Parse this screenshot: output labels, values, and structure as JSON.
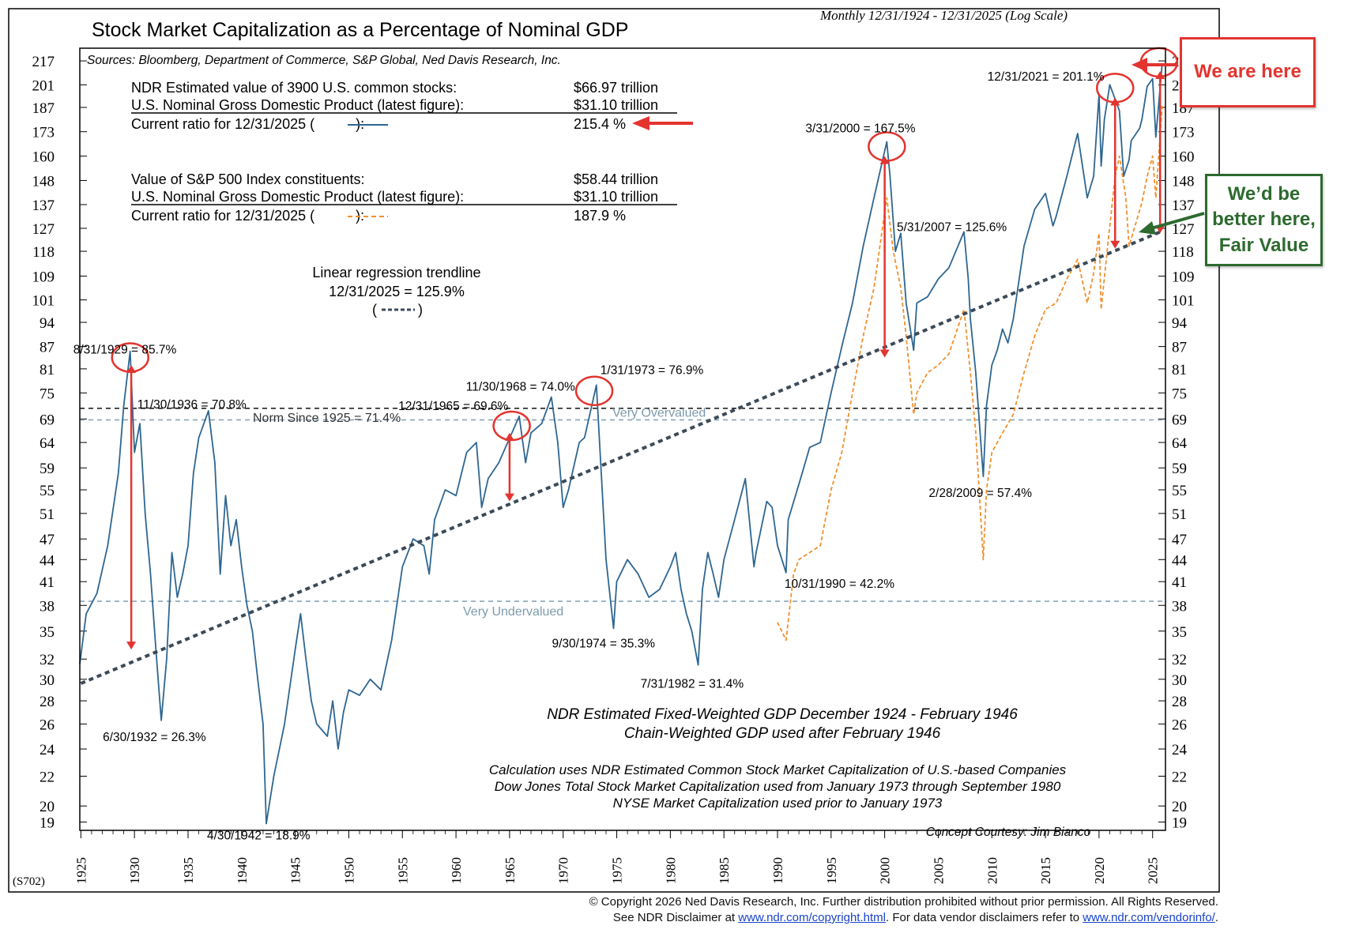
{
  "chart_data": {
    "type": "line",
    "title": "Stock Market Capitalization as a Percentage of Nominal GDP",
    "subtitle": "Monthly 12/31/1924 - 12/31/2025 (Log Scale)",
    "sources": "Sources: Bloomberg, Department of Commerce, S&P Global, Ned Davis Research, Inc.",
    "chart_code": "(S702)",
    "log_scale": true,
    "xlim": [
      1924.9,
      2026.2
    ],
    "ylim": [
      18.5,
      226
    ],
    "y_ticks": [
      19,
      20,
      22,
      24,
      26,
      28,
      30,
      32,
      35,
      38,
      41,
      44,
      47,
      51,
      55,
      59,
      64,
      69,
      75,
      81,
      87,
      94,
      101,
      109,
      118,
      127,
      137,
      148,
      160,
      173,
      187,
      201,
      217
    ],
    "x_ticks": [
      1925,
      1930,
      1935,
      1940,
      1945,
      1950,
      1955,
      1960,
      1965,
      1970,
      1975,
      1980,
      1985,
      1990,
      1995,
      2000,
      2005,
      2010,
      2015,
      2020,
      2025
    ],
    "info_block_1": [
      {
        "label": "NDR Estimated value of 3900 U.S. common stocks:",
        "value": "$66.97 trillion"
      },
      {
        "label": "U.S. Nominal Gross Domestic Product (latest figure):",
        "value": "$31.10 trillion"
      },
      {
        "label_a": "Current ratio for 12/31/2025 (",
        "label_b": "):",
        "value": "215.4 %"
      }
    ],
    "info_block_2": [
      {
        "label": "Value of S&P 500 Index constituents:",
        "value": "$58.44 trillion"
      },
      {
        "label": "U.S. Nominal Gross Domestic Product (latest figure):",
        "value": "$31.10 trillion"
      },
      {
        "label_a": "Current ratio for 12/31/2025 (",
        "label_b": "):",
        "value": "187.9 %"
      }
    ],
    "trend_label": [
      "Linear regression trendline",
      "12/31/2025 = 125.9%",
      "(",
      ")"
    ],
    "reference_lines": [
      {
        "name": "Norm Since 1925 = 71.4%",
        "value": 71.4,
        "color": "#222222",
        "dash": "6,5"
      },
      {
        "name": "Very Overvalued",
        "value": 68.8,
        "color": "#8aa6b6",
        "dash": "6,5"
      },
      {
        "name": "Very Undervalued",
        "value": 38.5,
        "color": "#8aa6b6",
        "dash": "6,5"
      }
    ],
    "trendline": {
      "x": [
        1925.0,
        2025.9
      ],
      "y": [
        29.6,
        125.9
      ],
      "color": "#3b4a58"
    },
    "series": [
      {
        "line_color": "#2e6691",
        "x": [
          1924.9,
          1925.5,
          1926.5,
          1927.5,
          1928.5,
          1929.0,
          1929.6,
          1930.0,
          1930.5,
          1931.0,
          1931.5,
          1932.0,
          1932.5,
          1933.0,
          1933.5,
          1934.0,
          1934.5,
          1935.0,
          1935.5,
          1936.0,
          1936.9,
          1937.5,
          1938.0,
          1938.5,
          1939.0,
          1939.5,
          1940.0,
          1940.5,
          1941.0,
          1941.5,
          1942.0,
          1942.3,
          1943.0,
          1944.0,
          1945.0,
          1945.5,
          1946.0,
          1946.5,
          1947.0,
          1948.0,
          1948.5,
          1949.0,
          1949.5,
          1950.0,
          1951.0,
          1952.0,
          1953.0,
          1954.0,
          1955.0,
          1956.0,
          1957.0,
          1957.5,
          1958.0,
          1959.0,
          1960.0,
          1961.0,
          1961.9,
          1962.4,
          1963.0,
          1964.0,
          1965.9,
          1966.5,
          1967.0,
          1968.0,
          1968.9,
          1969.5,
          1970.0,
          1970.5,
          1971.5,
          1972.0,
          1973.1,
          1973.5,
          1974.0,
          1974.7,
          1975.0,
          1976.0,
          1977.0,
          1978.0,
          1979.0,
          1980.0,
          1980.5,
          1981.0,
          1981.5,
          1982.0,
          1982.6,
          1983.0,
          1983.5,
          1984.0,
          1984.5,
          1985.0,
          1986.0,
          1987.0,
          1987.8,
          1988.0,
          1989.0,
          1989.5,
          1990.0,
          1990.8,
          1991.0,
          1992.0,
          1993.0,
          1994.0,
          1995.0,
          1996.0,
          1997.0,
          1998.0,
          1999.0,
          2000.2,
          2000.5,
          2001.0,
          2001.5,
          2002.0,
          2002.7,
          2003.0,
          2004.0,
          2005.0,
          2006.0,
          2007.4,
          2007.8,
          2008.0,
          2008.5,
          2009.2,
          2009.5,
          2010.0,
          2010.5,
          2011.0,
          2011.5,
          2012.0,
          2013.0,
          2014.0,
          2015.0,
          2015.7,
          2016.0,
          2017.0,
          2018.0,
          2018.9,
          2019.5,
          2020.0,
          2020.2,
          2020.5,
          2021.0,
          2021.9,
          2022.3,
          2022.8,
          2023.0,
          2023.8,
          2024.0,
          2024.5,
          2025.0,
          2025.3,
          2025.9
        ],
        "y": [
          31.5,
          37,
          39.5,
          46,
          58,
          72,
          85.7,
          62,
          68,
          51,
          42,
          33,
          26.3,
          32,
          45,
          39,
          42,
          46,
          58,
          65,
          70.8,
          60,
          42,
          54,
          46,
          50,
          43,
          38,
          35,
          30,
          26,
          18.9,
          22,
          26,
          33,
          37,
          32,
          28,
          26,
          25,
          28,
          24,
          27,
          29,
          28.5,
          30,
          29,
          34,
          43,
          47,
          46,
          42,
          50,
          55,
          54,
          62,
          64,
          52,
          57,
          60,
          69.6,
          60,
          66,
          68,
          74,
          64,
          52,
          55,
          64,
          65,
          76.9,
          60,
          44,
          35.3,
          41,
          44,
          42,
          39,
          40,
          43,
          45,
          40,
          37,
          35,
          31.4,
          40,
          45,
          42,
          39,
          44,
          50,
          57,
          43,
          45,
          53,
          52,
          46,
          42.2,
          50,
          56,
          63,
          64,
          75,
          87,
          100,
          120,
          140,
          167.5,
          150,
          118,
          125,
          100,
          86,
          100,
          102,
          108,
          112,
          125.6,
          108,
          95,
          80,
          57.4,
          72,
          82,
          86,
          92,
          88,
          95,
          120,
          135,
          142,
          128,
          132,
          150,
          172,
          140,
          150,
          195,
          155,
          180,
          201.1,
          185,
          150,
          158,
          168,
          175,
          180,
          200,
          205,
          170,
          215.4
        ]
      },
      {
        "line_color": "#f0902f",
        "x": [
          1990.0,
          1990.8,
          1991.5,
          1992.0,
          1993.0,
          1994.0,
          1995.0,
          1996.0,
          1997.0,
          1998.0,
          1999.0,
          2000.2,
          2000.8,
          2001.5,
          2002.0,
          2002.7,
          2003.0,
          2004.0,
          2005.0,
          2006.0,
          2007.4,
          2008.0,
          2008.5,
          2009.2,
          2009.5,
          2010.0,
          2011.0,
          2012.0,
          2013.0,
          2014.0,
          2015.0,
          2016.0,
          2017.0,
          2018.0,
          2018.9,
          2019.5,
          2020.0,
          2020.2,
          2020.8,
          2021.5,
          2021.9,
          2022.5,
          2022.8,
          2023.5,
          2024.0,
          2024.5,
          2025.0,
          2025.3,
          2025.9
        ],
        "y": [
          36,
          34,
          42,
          44,
          45,
          46,
          55,
          62,
          75,
          90,
          105,
          140,
          118,
          105,
          90,
          70,
          75,
          80,
          82,
          85,
          98,
          80,
          66,
          44,
          55,
          62,
          66,
          70,
          80,
          90,
          98,
          100,
          108,
          115,
          100,
          110,
          125,
          98,
          120,
          150,
          160,
          140,
          120,
          130,
          138,
          150,
          160,
          140,
          187.9
        ]
      }
    ],
    "annotations": [
      {
        "text": "8/31/1929 = 85.7%",
        "x": 1929.6,
        "y": 85.7
      },
      {
        "text": "11/30/1936 = 70.8%",
        "x": 1936.9,
        "y": 70.8
      },
      {
        "text": "6/30/1932 = 26.3%",
        "x": 1932.5,
        "y": 26.3
      },
      {
        "text": "4/30/1942 = 18.9%",
        "x": 1942.3,
        "y": 18.9
      },
      {
        "text": "11/30/1968 = 74.0%",
        "x": 1968.9,
        "y": 74.0
      },
      {
        "text": "12/31/1965 = 69.6%",
        "x": 1965.9,
        "y": 69.6
      },
      {
        "text": "1/31/1973 = 76.9%",
        "x": 1973.1,
        "y": 76.9
      },
      {
        "text": "9/30/1974 = 35.3%",
        "x": 1974.7,
        "y": 35.3
      },
      {
        "text": "7/31/1982 = 31.4%",
        "x": 1982.6,
        "y": 31.4
      },
      {
        "text": "10/31/1990 = 42.2%",
        "x": 1990.8,
        "y": 42.2
      },
      {
        "text": "3/31/2000 = 167.5%",
        "x": 2000.2,
        "y": 167.5
      },
      {
        "text": "5/31/2007 = 125.6%",
        "x": 2007.4,
        "y": 125.6
      },
      {
        "text": "2/28/2009 = 57.4%",
        "x": 2009.2,
        "y": 57.4
      },
      {
        "text": "12/31/2021 = 201.1%",
        "x": 2021.9,
        "y": 201.1
      }
    ],
    "notes": [
      "NDR Estimated Fixed-Weighted GDP December 1924 - February 1946",
      "Chain-Weighted GDP used after February 1946",
      "Calculation uses NDR Estimated Common Stock Market Capitalization of U.S.-based Companies",
      "Dow Jones Total Stock Market Capitalization used from January 1973 through September 1980",
      "NYSE Market Capitalization used prior to January 1973",
      "Concept Courtesy: Jim Bianco"
    ],
    "highlight_circles": [
      {
        "x": 1929.6,
        "y": 84
      },
      {
        "x": 1965.2,
        "y": 67.5
      },
      {
        "x": 1972.9,
        "y": 75.5
      },
      {
        "x": 2000.2,
        "y": 165
      },
      {
        "x": 2021.5,
        "y": 199
      },
      {
        "x": 2025.6,
        "y": 216
      }
    ],
    "gap_arrows": [
      {
        "x": 1929.7,
        "y_from": 82,
        "y_to": 33
      },
      {
        "x": 1965.0,
        "y_from": 66,
        "y_to": 53
      },
      {
        "x": 2000.0,
        "y_from": 160,
        "y_to": 84
      },
      {
        "x": 2021.5,
        "y_from": 193,
        "y_to": 119
      },
      {
        "x": 2025.7,
        "y_from": 210,
        "y_to": 125
      }
    ],
    "highlight_color": "#e3342f",
    "callouts": {
      "here": "We are here",
      "fair": "We’d be better here, Fair Value"
    }
  },
  "footer": {
    "line1": "© Copyright 2026 Ned Davis Research, Inc.  Further distribution prohibited without prior permission.  All Rights Reserved.",
    "line2_a": "See NDR Disclaimer at ",
    "link1": "www.ndr.com/copyright.html",
    "line2_b": ". For data vendor disclaimers refer to ",
    "link2": "www.ndr.com/vendorinfo/",
    "line2_c": "."
  }
}
